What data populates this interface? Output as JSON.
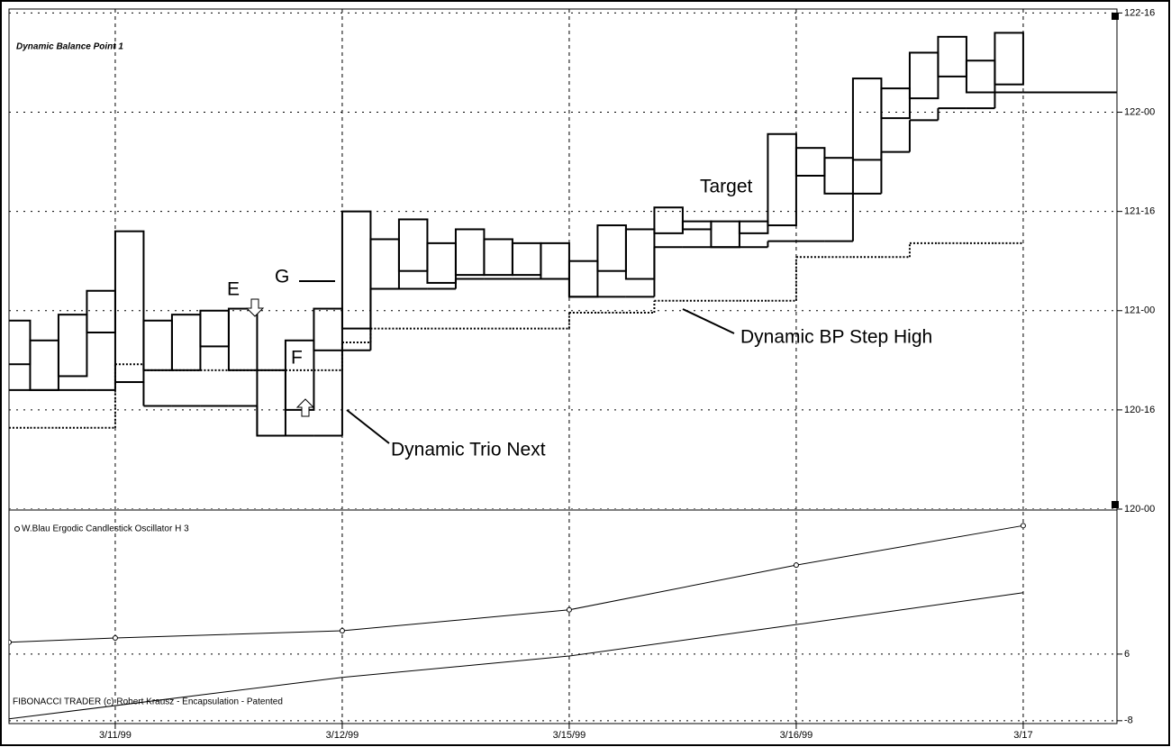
{
  "chart_data": [
    {
      "type": "range",
      "title": "Dynamic Balance Point 1",
      "x": [
        0.5,
        0.625,
        0.75,
        0.875,
        1,
        1.125,
        1.25,
        1.375,
        1.5,
        1.625,
        1.75,
        1.875,
        2,
        2.125,
        2.25,
        2.375,
        2.5,
        2.625,
        2.75,
        2.875,
        3,
        3.125,
        3.25,
        3.375,
        3.5,
        3.625,
        3.75,
        3.875,
        4,
        4.125,
        4.25,
        4.375,
        4.5,
        4.625,
        4.75,
        4.875
      ],
      "highs": [
        120.95,
        120.85,
        120.98,
        121.1,
        121.4,
        120.95,
        120.98,
        121.0,
        121.01,
        120.7,
        120.85,
        121.01,
        121.5,
        121.36,
        121.46,
        121.34,
        121.41,
        121.36,
        121.34,
        121.34,
        121.25,
        121.43,
        121.41,
        121.52,
        121.45,
        121.45,
        121.45,
        121.89,
        121.82,
        121.77,
        122.17,
        122.12,
        122.3,
        122.38,
        122.26,
        122.4
      ],
      "lows": [
        120.73,
        120.6,
        120.67,
        120.89,
        120.64,
        120.7,
        120.7,
        120.82,
        120.7,
        120.37,
        120.5,
        120.8,
        120.91,
        121.11,
        121.2,
        121.14,
        121.18,
        121.18,
        121.18,
        121.16,
        121.07,
        121.2,
        121.16,
        121.39,
        121.41,
        121.32,
        121.39,
        121.43,
        121.68,
        121.59,
        121.76,
        121.97,
        122.07,
        122.18,
        122.1,
        122.14
      ],
      "color": "#000000",
      "series": [
        {
          "name": "Dynamic Trio Next",
          "color": "#000000",
          "line_style": "solid",
          "values": [
            120.6,
            120.6,
            120.6,
            120.6,
            120.64,
            120.52,
            120.52,
            120.52,
            120.52,
            120.37,
            120.37,
            120.37,
            120.8,
            121.11,
            121.11,
            121.11,
            121.16,
            121.16,
            121.16,
            121.16,
            121.07,
            121.07,
            121.07,
            121.32,
            121.32,
            121.32,
            121.32,
            121.35,
            121.35,
            121.35,
            121.59,
            121.8,
            121.96,
            122.02,
            122.02,
            122.1
          ]
        },
        {
          "name": "Dynamic BP Step High",
          "color": "#000000",
          "line_style": "dotted",
          "values": [
            120.41,
            120.41,
            120.41,
            120.41,
            120.73,
            120.7,
            120.7,
            120.7,
            120.7,
            120.7,
            120.7,
            120.7,
            120.84,
            120.91,
            120.91,
            120.91,
            120.91,
            120.91,
            120.91,
            120.91,
            120.99,
            120.99,
            120.99,
            121.05,
            121.05,
            121.05,
            121.05,
            121.05,
            121.27,
            121.27,
            121.27,
            121.27,
            121.34,
            121.34,
            121.34,
            121.34
          ]
        }
      ],
      "annotations": [
        "E",
        "F",
        "G",
        "Target"
      ],
      "xlim": [
        0.532,
        5.413
      ],
      "xticks": [
        {
          "value": 1,
          "label": "3/11/99"
        },
        {
          "value": 2,
          "label": "3/12/99"
        },
        {
          "value": 3,
          "label": "3/15/99"
        },
        {
          "value": 4,
          "label": "3/16/99"
        },
        {
          "value": 5,
          "label": "3/17"
        }
      ],
      "ylim": [
        120,
        122.52
      ],
      "yticks": [
        {
          "value": 122.5,
          "label": "122-16"
        },
        {
          "value": 122,
          "label": "122-00"
        },
        {
          "value": 121.5,
          "label": "121-16"
        },
        {
          "value": 121,
          "label": "121-00"
        },
        {
          "value": 120.5,
          "label": "120-16"
        },
        {
          "value": 120,
          "label": "120-00"
        }
      ],
      "grid": true
    },
    {
      "type": "line",
      "title": "W.Blau Ergodic Candlestick Oscillator H 3",
      "series": [
        {
          "color": "#000000",
          "x": [
            0.532,
            1,
            2,
            3,
            4,
            5
          ],
          "values": [
            8.5,
            9.4,
            10.9,
            15.3,
            24.7,
            33.0
          ]
        },
        {
          "color": "#000000",
          "x": [
            0.532,
            2,
            3,
            4,
            5
          ],
          "values": [
            -7.6,
            1.1,
            5.6,
            12.2,
            18.9
          ]
        }
      ],
      "xlim": [
        0.532,
        5.413
      ],
      "ylim": [
        -8.6,
        35.9
      ],
      "yticks": [
        6,
        -8
      ],
      "grid": true
    }
  ],
  "footer": "FIBONACCI TRADER (c) Robert Krausz - Encapsulation - Patented"
}
